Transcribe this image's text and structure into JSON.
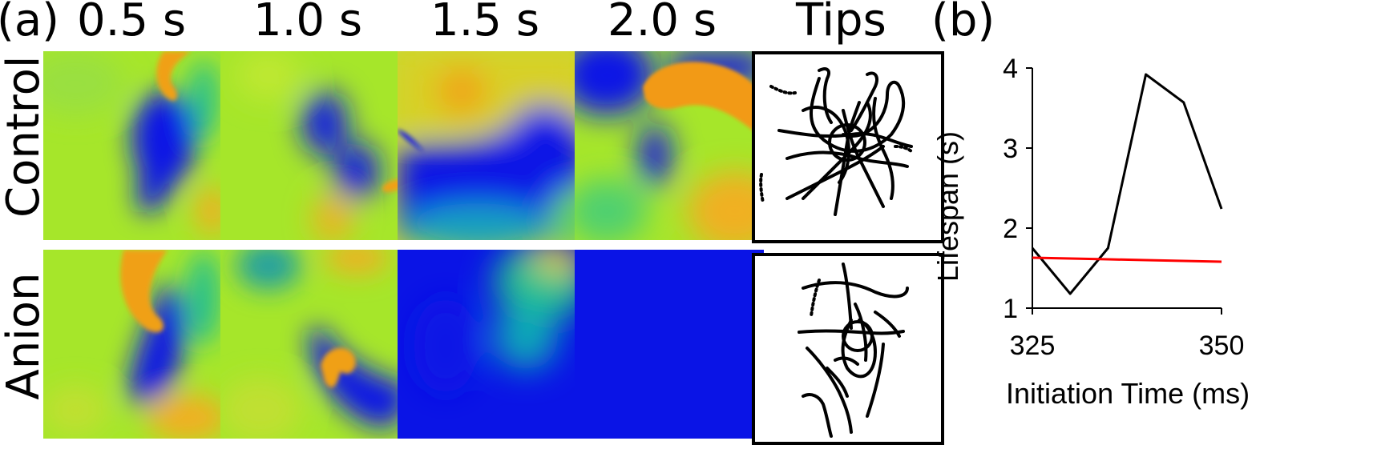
{
  "panel_labels": {
    "a": "(a)",
    "b": "(b)"
  },
  "columns": [
    "0.5 s",
    "1.0 s",
    "1.5 s",
    "2.0 s",
    "Tips"
  ],
  "rows": [
    "Control",
    "Anion"
  ],
  "chart_data": {
    "type": "line",
    "title": "",
    "xlabel": "Initiation Time (ms)",
    "ylabel": "Lifespan (s)",
    "xlim": [
      325,
      350
    ],
    "ylim": [
      1,
      4
    ],
    "xticks": [
      325,
      350
    ],
    "yticks": [
      1,
      2,
      3,
      4
    ],
    "x": [
      325,
      330,
      335,
      340,
      345,
      350
    ],
    "series": [
      {
        "color": "#000000",
        "values": [
          1.75,
          1.18,
          1.75,
          3.92,
          3.57,
          2.24
        ]
      },
      {
        "color": "#ff0000",
        "values": [
          1.63,
          1.62,
          1.61,
          1.6,
          1.59,
          1.58
        ]
      }
    ],
    "grid": false
  },
  "colors": {
    "blue": "#0a14e6",
    "cyan": "#10b0a8",
    "green": "#a6e62a",
    "yellow": "#f0d020",
    "orange": "#f29a14"
  }
}
